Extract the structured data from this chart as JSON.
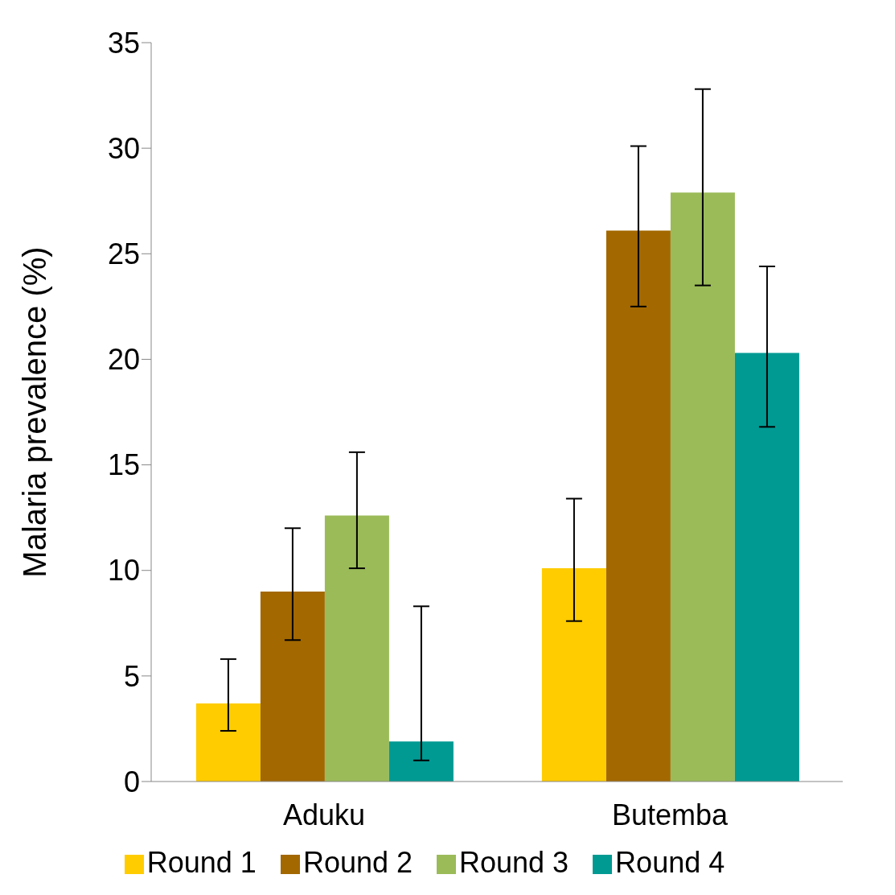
{
  "chart_data": {
    "type": "bar",
    "ylabel": "Malaria prevalence (%)",
    "categories": [
      "Aduku",
      "Butemba"
    ],
    "series": [
      {
        "name": "Round 1",
        "color": "#ffcc00",
        "values": [
          3.7,
          10.1
        ],
        "errors": [
          [
            2.4,
            5.8
          ],
          [
            7.6,
            13.4
          ]
        ]
      },
      {
        "name": "Round 2",
        "color": "#a36800",
        "values": [
          9.0,
          26.1
        ],
        "errors": [
          [
            6.7,
            12.0
          ],
          [
            22.5,
            30.1
          ]
        ]
      },
      {
        "name": "Round 3",
        "color": "#9bbb59",
        "values": [
          12.6,
          27.9
        ],
        "errors": [
          [
            10.1,
            15.6
          ],
          [
            23.5,
            32.8
          ]
        ]
      },
      {
        "name": "Round 4",
        "color": "#009a93",
        "values": [
          1.9,
          20.3
        ],
        "errors": [
          [
            1.0,
            8.3
          ],
          [
            16.8,
            24.4
          ]
        ]
      }
    ],
    "ylim": [
      0,
      35
    ],
    "yticks": [
      0,
      5,
      10,
      15,
      20,
      25,
      30,
      35
    ],
    "grid": false,
    "legend": "bottom"
  }
}
